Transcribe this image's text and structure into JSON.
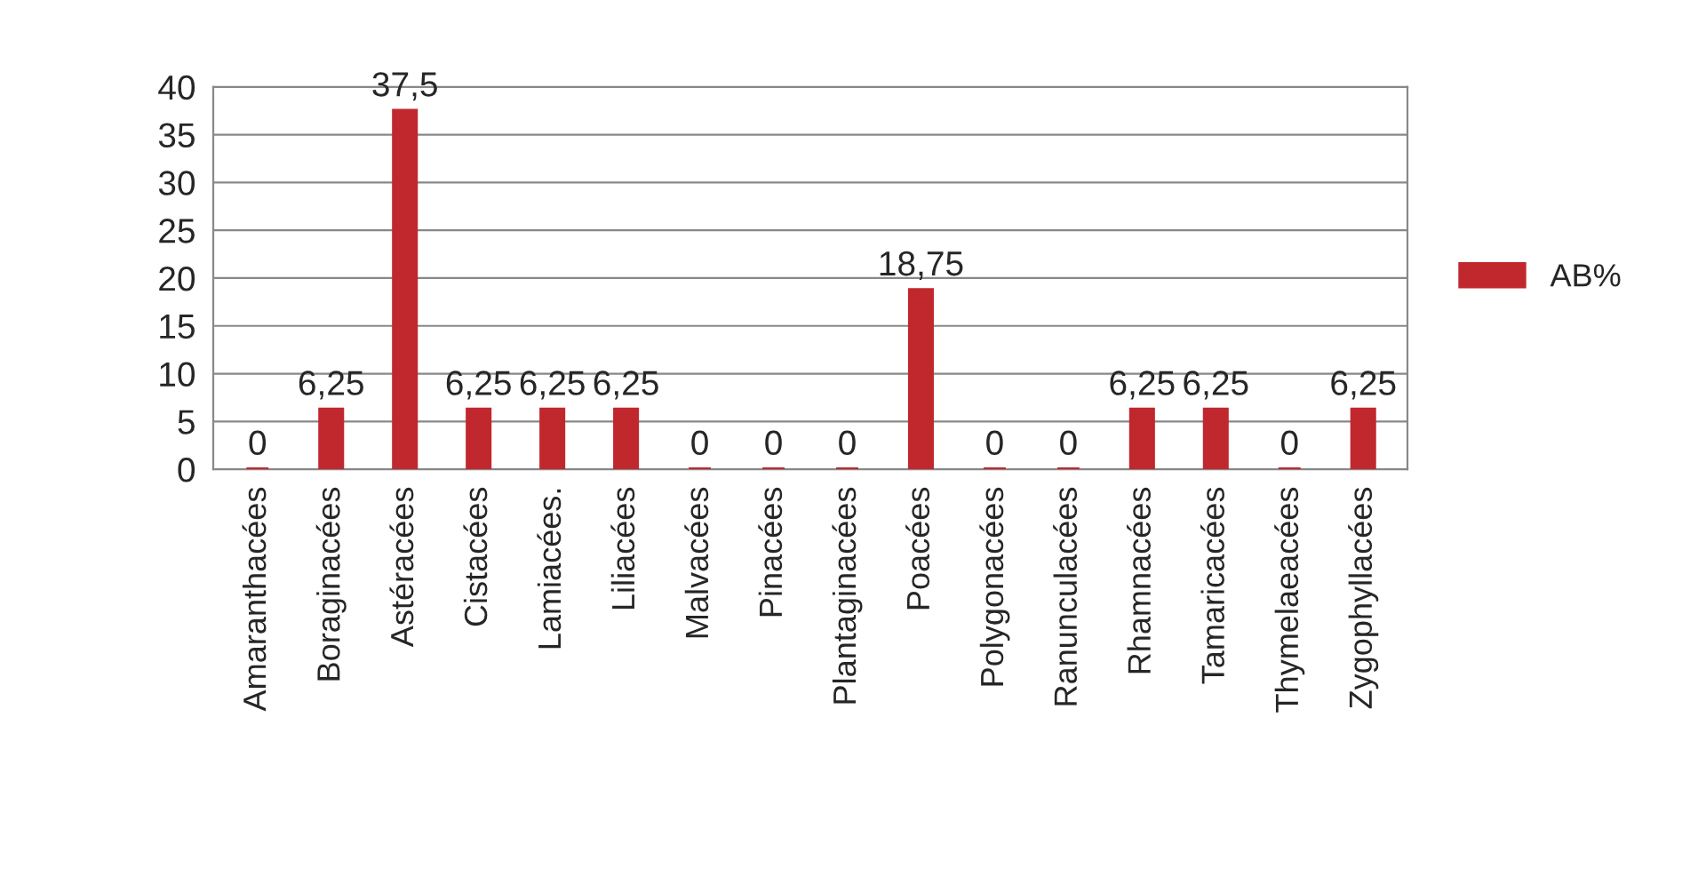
{
  "chart_data": {
    "type": "bar",
    "categories": [
      "Amaranthacées",
      "Boraginacées",
      "Astéracées",
      "Cistacées",
      "Lamiacées.",
      "Liliacées",
      "Malvacées",
      "Pinacées",
      "Plantaginacées",
      "Poacées",
      "Polygonacées",
      "Ranunculacées",
      "Rhamnacées",
      "Tamaricacées",
      "Thymelaeacées",
      "Zygophyllacées"
    ],
    "series": [
      {
        "name": "AB%",
        "color": "#c0282e",
        "values": [
          0,
          6.25,
          37.5,
          6.25,
          6.25,
          6.25,
          0,
          0,
          0,
          18.75,
          0,
          0,
          6.25,
          6.25,
          0,
          6.25
        ],
        "value_labels": [
          "0",
          "6,25",
          "37,5",
          "6,25",
          "6,25",
          "6,25",
          "0",
          "0",
          "0",
          "18,75",
          "0",
          "0",
          "6,25",
          "6,25",
          "0",
          "6,25"
        ]
      }
    ],
    "ylim": [
      0,
      40
    ],
    "yticks": [
      0,
      5,
      10,
      15,
      20,
      25,
      30,
      35,
      40
    ],
    "grid": "y",
    "legend": "right"
  }
}
